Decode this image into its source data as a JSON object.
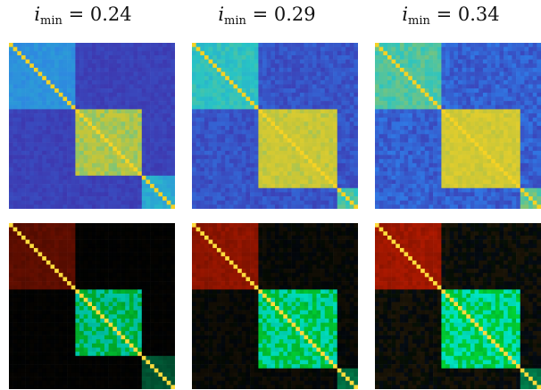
{
  "chart_data": [
    {
      "type": "heatmap",
      "row": "colormap",
      "title": {
        "symbol": "i",
        "subscript": "min",
        "op": "=",
        "value": "0.24"
      },
      "ordering": "block-diagonal",
      "blocks": [
        [
          0.0,
          0.39,
          0.36
        ],
        [
          0.39,
          0.8,
          0.78
        ],
        [
          0.8,
          1.0,
          0.45
        ]
      ],
      "background": 0.06,
      "colors": [
        "#3f2fa8",
        "#2f7be6",
        "#28c4c4",
        "#c3c53a",
        "#f5d224"
      ]
    },
    {
      "type": "heatmap",
      "row": "colormap",
      "title": {
        "symbol": "i",
        "subscript": "min",
        "op": "=",
        "value": "0.29"
      },
      "ordering": "block-diagonal",
      "blocks": [
        [
          0.0,
          0.4,
          0.55
        ],
        [
          0.4,
          0.88,
          0.86
        ],
        [
          0.88,
          1.0,
          0.6
        ]
      ],
      "background": 0.12,
      "colors": [
        "#3f2fa8",
        "#2f7be6",
        "#28c4c4",
        "#c3c53a",
        "#f5d224"
      ]
    },
    {
      "type": "heatmap",
      "row": "colormap",
      "title": {
        "symbol": "i",
        "subscript": "min",
        "op": "=",
        "value": "0.34"
      },
      "ordering": "block-diagonal",
      "blocks": [
        [
          0.0,
          0.4,
          0.62
        ],
        [
          0.4,
          0.88,
          0.9
        ],
        [
          0.88,
          1.0,
          0.65
        ]
      ],
      "background": 0.16,
      "colors": [
        "#3f2fa8",
        "#2f7be6",
        "#28c4c4",
        "#c3c53a",
        "#f5d224"
      ]
    },
    {
      "type": "heatmap",
      "row": "rgb-channels",
      "ordering": "block-diagonal",
      "blocks": [
        [
          0.0,
          0.39,
          0.36
        ],
        [
          0.39,
          0.8,
          0.78
        ],
        [
          0.8,
          1.0,
          0.45
        ]
      ],
      "background": 0.02,
      "channels": {
        "red": "block 1",
        "green": "block 2",
        "blue": "texture"
      }
    },
    {
      "type": "heatmap",
      "row": "rgb-channels",
      "ordering": "block-diagonal",
      "blocks": [
        [
          0.0,
          0.4,
          0.55
        ],
        [
          0.4,
          0.88,
          0.86
        ],
        [
          0.88,
          1.0,
          0.6
        ]
      ],
      "background": 0.08,
      "channels": {
        "red": "block 1",
        "green": "block 2",
        "blue": "texture"
      }
    },
    {
      "type": "heatmap",
      "row": "rgb-channels",
      "ordering": "block-diagonal",
      "blocks": [
        [
          0.0,
          0.4,
          0.62
        ],
        [
          0.4,
          0.88,
          0.9
        ],
        [
          0.88,
          1.0,
          0.65
        ]
      ],
      "background": 0.12,
      "channels": {
        "red": "block 1",
        "green": "block 2",
        "blue": "texture"
      }
    }
  ]
}
